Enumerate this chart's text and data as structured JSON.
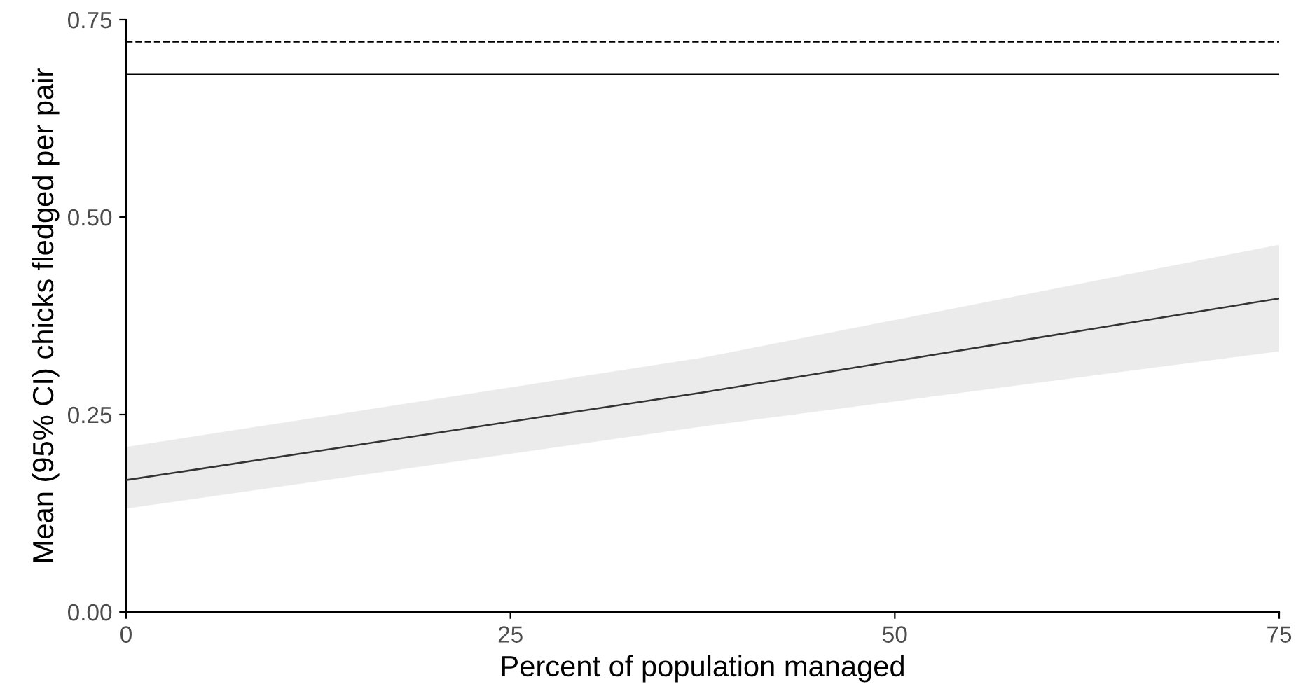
{
  "chart_data": {
    "type": "line",
    "xlabel": "Percent of population managed",
    "ylabel": "Mean (95% CI) chicks fledged per pair",
    "series": [
      {
        "color": "#333333",
        "x": [
          0,
          37.5,
          75
        ],
        "values": [
          0.167,
          0.278,
          0.397
        ],
        "lower": [
          0.131,
          0.235,
          0.33
        ],
        "upper": [
          0.209,
          0.322,
          0.465
        ]
      }
    ],
    "xlim": [
      0,
      75
    ],
    "xticks": [
      0,
      25,
      50,
      75
    ],
    "ylim": [
      0,
      0.75
    ],
    "yticks": [
      {
        "value": 0,
        "label": "0.00"
      },
      {
        "value": 0.25,
        "label": "0.25"
      },
      {
        "value": 0.5,
        "label": "0.50"
      },
      {
        "value": 0.75,
        "label": "0.75"
      }
    ],
    "ref_lines": [
      {
        "axis": "y",
        "value": 0.681,
        "color": "#000000",
        "line_style": "solid"
      },
      {
        "axis": "y",
        "value": 0.722,
        "color": "#000000",
        "line_style": "dashed"
      }
    ],
    "grid": false,
    "legend": false,
    "marker": "none",
    "line_style": "solid"
  }
}
